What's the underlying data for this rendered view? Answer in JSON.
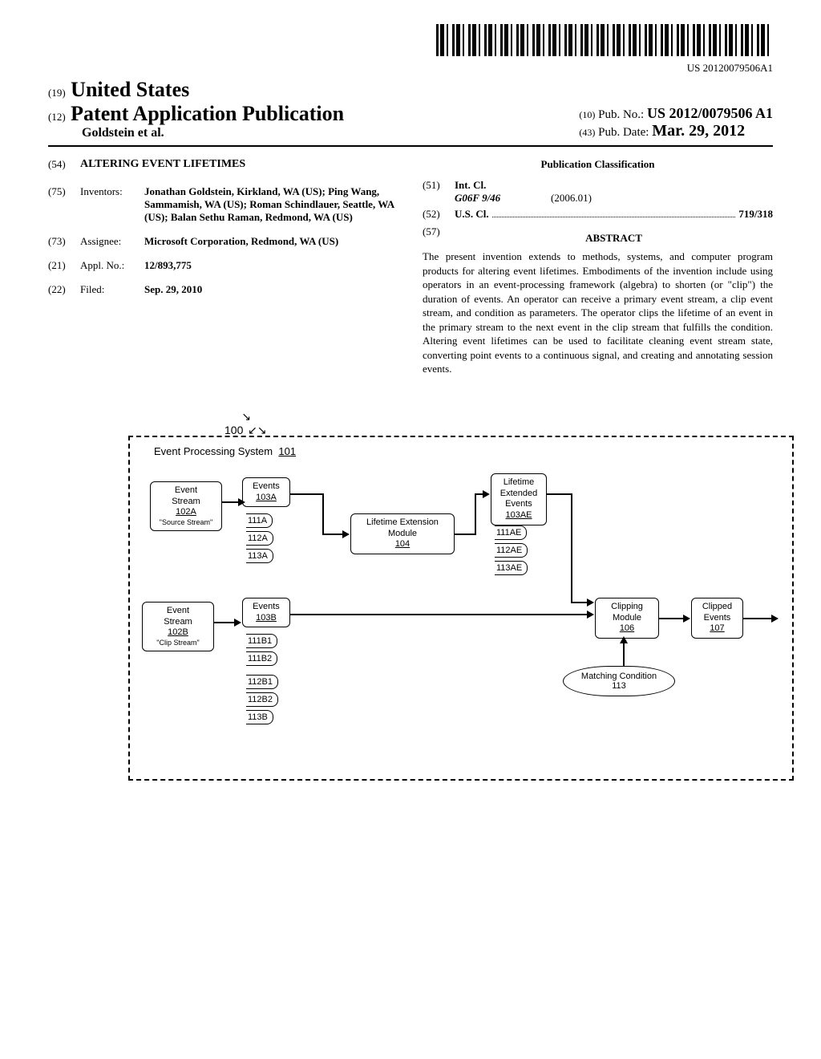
{
  "barcode_label": "US 20120079506A1",
  "header": {
    "country_prefix": "(19)",
    "country": "United States",
    "pub_prefix": "(12)",
    "pub_type": "Patent Application Publication",
    "authors": "Goldstein et al.",
    "pubnum_prefix": "(10)",
    "pubnum_label": "Pub. No.:",
    "pubnum": "US 2012/0079506 A1",
    "pubdate_prefix": "(43)",
    "pubdate_label": "Pub. Date:",
    "pubdate": "Mar. 29, 2012"
  },
  "left_col": {
    "title_code": "(54)",
    "title": "ALTERING EVENT LIFETIMES",
    "inventors_code": "(75)",
    "inventors_label": "Inventors:",
    "inventors_val": "Jonathan Goldstein, Kirkland, WA (US); Ping Wang, Sammamish, WA (US); Roman Schindlauer, Seattle, WA (US); Balan Sethu Raman, Redmond, WA (US)",
    "assignee_code": "(73)",
    "assignee_label": "Assignee:",
    "assignee_val": "Microsoft Corporation, Redmond, WA (US)",
    "appl_code": "(21)",
    "appl_label": "Appl. No.:",
    "appl_val": "12/893,775",
    "filed_code": "(22)",
    "filed_label": "Filed:",
    "filed_val": "Sep. 29, 2010"
  },
  "right_col": {
    "classif_head": "Publication Classification",
    "intcl_code": "(51)",
    "intcl_label": "Int. Cl.",
    "intcl_class": "G06F 9/46",
    "intcl_date": "(2006.01)",
    "uscl_code": "(52)",
    "uscl_label": "U.S. Cl.",
    "uscl_val": "719/318",
    "abstract_code": "(57)",
    "abstract_head": "ABSTRACT",
    "abstract_body": "The present invention extends to methods, systems, and computer program products for altering event lifetimes. Embodiments of the invention include using operators in an event-processing framework (algebra) to shorten (or \"clip\") the duration of events. An operator can receive a primary event stream, a clip event stream, and condition as parameters. The operator clips the lifetime of an event in the primary stream to the next event in the clip stream that fulfills the condition. Altering event lifetimes can be used to facilitate cleaning event stream state, converting point events to a continuous signal, and creating and annotating session events."
  },
  "figure": {
    "fig_num": "100",
    "system_label": "Event Processing System",
    "system_num": "101",
    "stream_a": {
      "title": "Event\nStream",
      "num": "102A",
      "sub": "\"Source Stream\""
    },
    "events_a": {
      "title": "Events",
      "num": "103A",
      "tags": [
        "111A",
        "112A",
        "113A"
      ]
    },
    "lem": {
      "title": "Lifetime Extension\nModule",
      "num": "104"
    },
    "ext_events": {
      "title": "Lifetime\nExtended\nEvents",
      "num": "103AE",
      "tags": [
        "111AE",
        "112AE",
        "113AE"
      ]
    },
    "stream_b": {
      "title": "Event\nStream",
      "num": "102B",
      "sub": "\"Clip Stream\""
    },
    "events_b": {
      "title": "Events",
      "num": "103B",
      "tags": [
        "111B1",
        "111B2",
        "112B1",
        "112B2",
        "113B"
      ]
    },
    "clip_mod": {
      "title": "Clipping\nModule",
      "num": "106"
    },
    "clipped": {
      "title": "Clipped\nEvents",
      "num": "107"
    },
    "condition": {
      "title": "Matching Condition",
      "num": "113"
    }
  }
}
